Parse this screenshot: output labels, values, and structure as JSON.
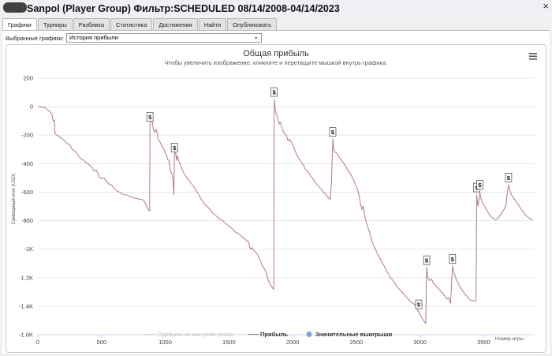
{
  "window": {
    "title": "Sanpol (Player Group) Фильтр:SCHEDULED 08/14/2008-04/14/2023",
    "close_label": "×"
  },
  "tabs": [
    {
      "label": "Графики",
      "active": true
    },
    {
      "label": "Турниры",
      "active": false
    },
    {
      "label": "Разбивка",
      "active": false
    },
    {
      "label": "Статистика",
      "active": false
    },
    {
      "label": "Достижения",
      "active": false
    },
    {
      "label": "Найти",
      "active": false
    },
    {
      "label": "Опубликовать",
      "active": false
    }
  ],
  "selector": {
    "label": "Выбранные графики:",
    "value": "История прибыли"
  },
  "chart_data": {
    "type": "line",
    "title": "Общая прибыль",
    "subtitle": "Чтобы увеличить изображение, кликните и перетащите мышкой внутрь графика.",
    "ylabel": "Суммарный итог (USD)",
    "xlabel": "Номер игры",
    "xlim": [
      0,
      3900
    ],
    "ylim": [
      -1600,
      200
    ],
    "x_ticks": [
      0,
      500,
      1000,
      1500,
      2000,
      2500,
      3000,
      3500
    ],
    "x_tick_labels": [
      "0",
      "500",
      "1000",
      "1500",
      "2000",
      "2500",
      "3000",
      "3500"
    ],
    "y_ticks": [
      200,
      0,
      -200,
      -400,
      -600,
      -800,
      -1000,
      -1200,
      -1400,
      -1600
    ],
    "y_tick_labels": [
      "200",
      "0",
      "-200",
      "-400",
      "-600",
      "-800",
      "-1K",
      "-1.2K",
      "-1.4K",
      "-1.6K"
    ],
    "grid": "horizontal",
    "series": [
      {
        "name": "Прибыль",
        "color": "#b07a80",
        "points": [
          [
            0,
            0
          ],
          [
            20,
            -2
          ],
          [
            40,
            -5
          ],
          [
            55,
            -3
          ],
          [
            70,
            -18
          ],
          [
            90,
            -30
          ],
          [
            110,
            -55
          ],
          [
            120,
            -100
          ],
          [
            130,
            -95
          ],
          [
            135,
            -190
          ],
          [
            160,
            -205
          ],
          [
            180,
            -220
          ],
          [
            200,
            -230
          ],
          [
            230,
            -260
          ],
          [
            250,
            -265
          ],
          [
            270,
            -300
          ],
          [
            290,
            -310
          ],
          [
            310,
            -330
          ],
          [
            330,
            -360
          ],
          [
            350,
            -370
          ],
          [
            370,
            -385
          ],
          [
            390,
            -400
          ],
          [
            420,
            -420
          ],
          [
            440,
            -450
          ],
          [
            460,
            -445
          ],
          [
            480,
            -490
          ],
          [
            500,
            -505
          ],
          [
            520,
            -500
          ],
          [
            540,
            -525
          ],
          [
            560,
            -545
          ],
          [
            580,
            -550
          ],
          [
            600,
            -575
          ],
          [
            620,
            -590
          ],
          [
            640,
            -600
          ],
          [
            670,
            -615
          ],
          [
            700,
            -620
          ],
          [
            720,
            -630
          ],
          [
            750,
            -640
          ],
          [
            780,
            -645
          ],
          [
            800,
            -650
          ],
          [
            820,
            -652
          ],
          [
            840,
            -670
          ],
          [
            855,
            -700
          ],
          [
            870,
            -725
          ],
          [
            878,
            -730
          ],
          [
            880,
            -125
          ],
          [
            895,
            -85
          ],
          [
            905,
            -150
          ],
          [
            915,
            -180
          ],
          [
            930,
            -160
          ],
          [
            945,
            -230
          ],
          [
            960,
            -250
          ],
          [
            975,
            -280
          ],
          [
            990,
            -300
          ],
          [
            1005,
            -330
          ],
          [
            1020,
            -370
          ],
          [
            1030,
            -380
          ],
          [
            1040,
            -450
          ],
          [
            1050,
            -465
          ],
          [
            1060,
            -500
          ],
          [
            1068,
            -620
          ],
          [
            1072,
            -340
          ],
          [
            1080,
            -300
          ],
          [
            1088,
            -380
          ],
          [
            1095,
            -345
          ],
          [
            1110,
            -390
          ],
          [
            1125,
            -420
          ],
          [
            1140,
            -455
          ],
          [
            1155,
            -480
          ],
          [
            1170,
            -500
          ],
          [
            1190,
            -520
          ],
          [
            1210,
            -545
          ],
          [
            1230,
            -570
          ],
          [
            1250,
            -600
          ],
          [
            1270,
            -630
          ],
          [
            1290,
            -660
          ],
          [
            1310,
            -685
          ],
          [
            1330,
            -700
          ],
          [
            1350,
            -720
          ],
          [
            1370,
            -745
          ],
          [
            1390,
            -760
          ],
          [
            1410,
            -775
          ],
          [
            1430,
            -790
          ],
          [
            1450,
            -800
          ],
          [
            1470,
            -815
          ],
          [
            1490,
            -830
          ],
          [
            1510,
            -845
          ],
          [
            1530,
            -860
          ],
          [
            1550,
            -880
          ],
          [
            1570,
            -890
          ],
          [
            1590,
            -900
          ],
          [
            1610,
            -920
          ],
          [
            1625,
            -930
          ],
          [
            1640,
            -940
          ],
          [
            1655,
            -950
          ],
          [
            1668,
            -1000
          ],
          [
            1680,
            -990
          ],
          [
            1695,
            -1010
          ],
          [
            1710,
            -1020
          ],
          [
            1725,
            -1040
          ],
          [
            1740,
            -1070
          ],
          [
            1755,
            -1100
          ],
          [
            1770,
            -1130
          ],
          [
            1780,
            -1140
          ],
          [
            1790,
            -1160
          ],
          [
            1800,
            -1190
          ],
          [
            1810,
            -1220
          ],
          [
            1820,
            -1240
          ],
          [
            1830,
            -1255
          ],
          [
            1845,
            -1275
          ],
          [
            1852,
            -1280
          ],
          [
            1855,
            50
          ],
          [
            1865,
            -30
          ],
          [
            1880,
            -70
          ],
          [
            1895,
            -120
          ],
          [
            1905,
            -110
          ],
          [
            1920,
            -160
          ],
          [
            1935,
            -190
          ],
          [
            1950,
            -200
          ],
          [
            1965,
            -240
          ],
          [
            1980,
            -230
          ],
          [
            1995,
            -260
          ],
          [
            2010,
            -290
          ],
          [
            2025,
            -320
          ],
          [
            2040,
            -350
          ],
          [
            2055,
            -370
          ],
          [
            2070,
            -395
          ],
          [
            2085,
            -410
          ],
          [
            2100,
            -440
          ],
          [
            2115,
            -450
          ],
          [
            2130,
            -470
          ],
          [
            2145,
            -490
          ],
          [
            2160,
            -505
          ],
          [
            2175,
            -530
          ],
          [
            2190,
            -545
          ],
          [
            2205,
            -560
          ],
          [
            2220,
            -575
          ],
          [
            2235,
            -590
          ],
          [
            2250,
            -610
          ],
          [
            2265,
            -620
          ],
          [
            2280,
            -640
          ],
          [
            2295,
            -650
          ],
          [
            2305,
            -540
          ],
          [
            2315,
            -230
          ],
          [
            2322,
            -290
          ],
          [
            2330,
            -320
          ],
          [
            2340,
            -320
          ],
          [
            2355,
            -340
          ],
          [
            2370,
            -360
          ],
          [
            2385,
            -380
          ],
          [
            2400,
            -395
          ],
          [
            2415,
            -415
          ],
          [
            2430,
            -440
          ],
          [
            2445,
            -460
          ],
          [
            2460,
            -480
          ],
          [
            2475,
            -510
          ],
          [
            2490,
            -540
          ],
          [
            2505,
            -570
          ],
          [
            2515,
            -600
          ],
          [
            2525,
            -640
          ],
          [
            2535,
            -690
          ],
          [
            2545,
            -720
          ],
          [
            2555,
            -700
          ],
          [
            2565,
            -760
          ],
          [
            2575,
            -800
          ],
          [
            2585,
            -830
          ],
          [
            2595,
            -860
          ],
          [
            2605,
            -880
          ],
          [
            2615,
            -920
          ],
          [
            2630,
            -960
          ],
          [
            2645,
            -990
          ],
          [
            2660,
            -1020
          ],
          [
            2675,
            -1050
          ],
          [
            2690,
            -1070
          ],
          [
            2705,
            -1100
          ],
          [
            2720,
            -1120
          ],
          [
            2735,
            -1150
          ],
          [
            2750,
            -1170
          ],
          [
            2765,
            -1200
          ],
          [
            2780,
            -1210
          ],
          [
            2795,
            -1230
          ],
          [
            2810,
            -1250
          ],
          [
            2825,
            -1270
          ],
          [
            2840,
            -1280
          ],
          [
            2855,
            -1300
          ],
          [
            2870,
            -1310
          ],
          [
            2885,
            -1330
          ],
          [
            2900,
            -1340
          ],
          [
            2915,
            -1360
          ],
          [
            2930,
            -1370
          ],
          [
            2945,
            -1380
          ],
          [
            2960,
            -1390
          ],
          [
            2975,
            -1420
          ],
          [
            2990,
            -1440
          ],
          [
            3005,
            -1465
          ],
          [
            3020,
            -1490
          ],
          [
            3035,
            -1510
          ],
          [
            3045,
            -1520
          ],
          [
            3052,
            -1130
          ],
          [
            3062,
            -1200
          ],
          [
            3075,
            -1220
          ],
          [
            3090,
            -1210
          ],
          [
            3105,
            -1240
          ],
          [
            3120,
            -1250
          ],
          [
            3135,
            -1270
          ],
          [
            3150,
            -1280
          ],
          [
            3165,
            -1300
          ],
          [
            3180,
            -1310
          ],
          [
            3195,
            -1330
          ],
          [
            3210,
            -1350
          ],
          [
            3225,
            -1340
          ],
          [
            3240,
            -1380
          ],
          [
            3255,
            -1120
          ],
          [
            3265,
            -1160
          ],
          [
            3280,
            -1200
          ],
          [
            3295,
            -1230
          ],
          [
            3310,
            -1260
          ],
          [
            3325,
            -1280
          ],
          [
            3340,
            -1300
          ],
          [
            3355,
            -1320
          ],
          [
            3370,
            -1330
          ],
          [
            3385,
            -1350
          ],
          [
            3400,
            -1360
          ],
          [
            3415,
            -1360
          ],
          [
            3430,
            -1365
          ],
          [
            3440,
            -1360
          ],
          [
            3445,
            -620
          ],
          [
            3455,
            -700
          ],
          [
            3465,
            -650
          ],
          [
            3470,
            -600
          ],
          [
            3480,
            -650
          ],
          [
            3495,
            -680
          ],
          [
            3510,
            -700
          ],
          [
            3525,
            -730
          ],
          [
            3540,
            -750
          ],
          [
            3555,
            -770
          ],
          [
            3570,
            -780
          ],
          [
            3585,
            -790
          ],
          [
            3600,
            -790
          ],
          [
            3615,
            -780
          ],
          [
            3630,
            -760
          ],
          [
            3645,
            -740
          ],
          [
            3660,
            -720
          ],
          [
            3675,
            -690
          ],
          [
            3685,
            -600
          ],
          [
            3695,
            -550
          ],
          [
            3705,
            -590
          ],
          [
            3720,
            -620
          ],
          [
            3735,
            -640
          ],
          [
            3750,
            -660
          ],
          [
            3765,
            -680
          ],
          [
            3780,
            -700
          ],
          [
            3795,
            -720
          ],
          [
            3810,
            -740
          ],
          [
            3825,
            -760
          ],
          [
            3840,
            -770
          ],
          [
            3855,
            -780
          ],
          [
            3870,
            -790
          ],
          [
            3885,
            -790
          ]
        ]
      }
    ],
    "markers": [
      {
        "x": 880,
        "y": -125,
        "label": "$"
      },
      {
        "x": 1072,
        "y": -340,
        "label": "$"
      },
      {
        "x": 1855,
        "y": 50,
        "label": "$"
      },
      {
        "x": 2315,
        "y": -230,
        "label": "$"
      },
      {
        "x": 2990,
        "y": -1440,
        "label": "$"
      },
      {
        "x": 3052,
        "y": -1130,
        "label": "$"
      },
      {
        "x": 3255,
        "y": -1120,
        "label": "$"
      },
      {
        "x": 3445,
        "y": -620,
        "label": "$"
      },
      {
        "x": 3470,
        "y": -600,
        "label": "$"
      },
      {
        "x": 3695,
        "y": -550,
        "label": "$"
      }
    ],
    "legend": [
      {
        "label": "Прибыль за минусом рейка",
        "color": "#d6d6d6",
        "muted": true
      },
      {
        "label": "Прибыль",
        "color": "#b07a80",
        "muted": false
      },
      {
        "label": "Значительные выигрыши",
        "color": "#7ba7d6",
        "muted": false
      }
    ],
    "legend_position": "bottom-center"
  }
}
